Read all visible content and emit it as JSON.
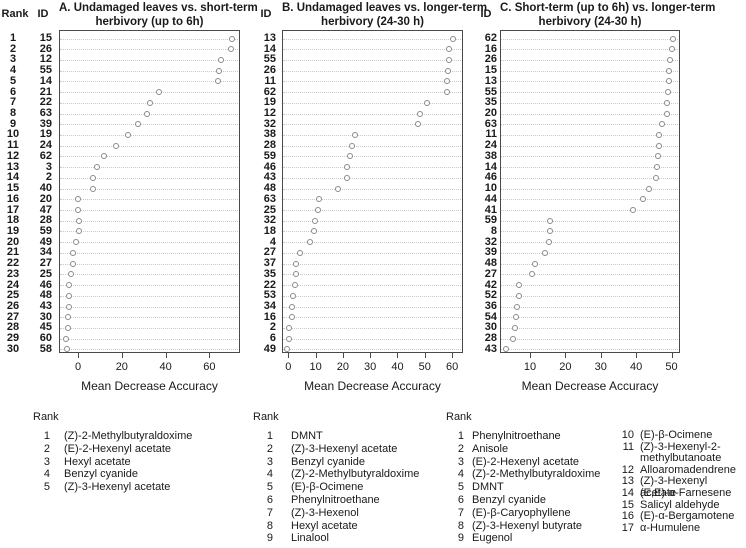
{
  "figure": {
    "background": "#ffffff",
    "text_color": "#1a1a1a",
    "dot_stroke": "#8a8a8a",
    "grid_color": "#c9c9c9",
    "box_color": "#4a4a4a"
  },
  "chart_data": [
    {
      "type": "scatter",
      "title": "A. Undamaged leaves vs. short-term herbivory (up to 6h)",
      "title_lines": [
        "A. Undamaged leaves vs. short-term",
        "herbivory (up to 6h)"
      ],
      "rank_header": "Rank",
      "id_header": "ID",
      "xlabel": "Mean Decrease Accuracy",
      "ranks": [
        1,
        2,
        3,
        4,
        5,
        6,
        7,
        8,
        9,
        10,
        11,
        12,
        13,
        14,
        15,
        16,
        17,
        18,
        19,
        20,
        21,
        22,
        23,
        24,
        25,
        26,
        27,
        28,
        29,
        30
      ],
      "ids": [
        15,
        26,
        12,
        55,
        14,
        21,
        22,
        63,
        39,
        19,
        24,
        62,
        3,
        2,
        40,
        20,
        47,
        28,
        59,
        49,
        34,
        27,
        25,
        46,
        48,
        43,
        30,
        45,
        60,
        58
      ],
      "values": [
        70.5,
        70,
        65.5,
        64.5,
        64,
        37,
        33,
        31.5,
        27.5,
        23,
        17.5,
        12,
        8.5,
        7,
        7,
        0,
        0,
        0.3,
        0.3,
        -1,
        -2.5,
        -2.5,
        -3,
        -4,
        -4,
        -4,
        -4.5,
        -4.5,
        -5.5,
        -5
      ],
      "xticks": [
        0,
        20,
        40,
        60
      ],
      "xlim": [
        -8.7,
        74
      ],
      "grid": "horizontal-dotted",
      "legend_position": "none"
    },
    {
      "type": "scatter",
      "title": "B. Undamaged leaves vs. longer-term herbivory (24-30 h)",
      "title_lines": [
        "B. Undamaged leaves vs. longer-term",
        "herbivory (24-30 h)"
      ],
      "rank_header": "",
      "id_header": "ID",
      "xlabel": "Mean Decrease Accuracy",
      "ranks": [
        1,
        2,
        3,
        4,
        5,
        6,
        7,
        8,
        9,
        10,
        11,
        12,
        13,
        14,
        15,
        16,
        17,
        18,
        19,
        20,
        21,
        22,
        23,
        24,
        25,
        26,
        27,
        28,
        29,
        30
      ],
      "ids": [
        13,
        14,
        55,
        26,
        11,
        62,
        19,
        12,
        32,
        38,
        28,
        59,
        46,
        43,
        48,
        63,
        25,
        32,
        18,
        4,
        27,
        37,
        35,
        22,
        53,
        34,
        16,
        2,
        6,
        49
      ],
      "values": [
        60.5,
        59,
        58.8,
        58.4,
        58.2,
        58,
        50.8,
        48.2,
        47.4,
        24.5,
        23.4,
        22.6,
        21.5,
        21.4,
        18.2,
        11.2,
        10.8,
        9.8,
        9.4,
        8.1,
        4.3,
        2.7,
        2.7,
        2.5,
        1.8,
        1.2,
        1.2,
        0.4,
        0.1,
        -0.4
      ],
      "xticks": [
        0,
        10,
        20,
        30,
        40,
        50,
        60
      ],
      "xlim": [
        -2.3,
        64
      ],
      "grid": "horizontal-dotted",
      "legend_position": "none"
    },
    {
      "type": "scatter",
      "title": "C. Short-term (up to 6h) vs. longer-term herbivory (24-30 h)",
      "title_lines": [
        "C. Short-term (up to 6h) vs. longer-term",
        "herbivory (24-30 h)"
      ],
      "rank_header": "",
      "id_header": "ID",
      "xlabel": "Mean Decrease Accuracy",
      "ranks": [
        1,
        2,
        3,
        4,
        5,
        6,
        7,
        8,
        9,
        10,
        11,
        12,
        13,
        14,
        15,
        16,
        17,
        18,
        19,
        20,
        21,
        22,
        23,
        24,
        25,
        26,
        27,
        28,
        29,
        30
      ],
      "ids": [
        62,
        16,
        26,
        15,
        13,
        55,
        35,
        20,
        63,
        11,
        24,
        38,
        14,
        46,
        10,
        44,
        41,
        59,
        8,
        32,
        39,
        48,
        27,
        42,
        52,
        36,
        54,
        30,
        28,
        43
      ],
      "values": [
        50.3,
        50,
        49.6,
        49.4,
        49.2,
        49,
        48.8,
        48.6,
        47.3,
        46.5,
        46.4,
        46.1,
        46,
        45.5,
        43.6,
        42,
        39.2,
        15.6,
        15.5,
        15.3,
        14.3,
        11.5,
        10.5,
        6.9,
        6.8,
        6.2,
        6.1,
        5.8,
        5.1,
        3.2
      ],
      "xticks": [
        10,
        20,
        30,
        40,
        50
      ],
      "xlim": [
        1.5,
        52.4
      ],
      "grid": "horizontal-dotted",
      "legend_position": "none"
    }
  ],
  "legend_sections": [
    {
      "header": "Rank",
      "items": [
        {
          "rank": "1",
          "name": "(Z)-2-Methylbutyraldoxime"
        },
        {
          "rank": "2",
          "name": "(E)-2-Hexenyl acetate"
        },
        {
          "rank": "3",
          "name": "Hexyl acetate"
        },
        {
          "rank": "4",
          "name": "Benzyl cyanide"
        },
        {
          "rank": "5",
          "name": "(Z)-3-Hexenyl acetate"
        }
      ]
    },
    {
      "header": "Rank",
      "items": [
        {
          "rank": "1",
          "name": "DMNT"
        },
        {
          "rank": "2",
          "name": "(Z)-3-Hexenyl acetate"
        },
        {
          "rank": "3",
          "name": "Benzyl cyanide"
        },
        {
          "rank": "4",
          "name": "(Z)-2-Methylbutyraldoxime"
        },
        {
          "rank": "5",
          "name": "(E)-β-Ocimene"
        },
        {
          "rank": "6",
          "name": "Phenylnitroethane"
        },
        {
          "rank": "7",
          "name": "(Z)-3-Hexenol"
        },
        {
          "rank": "8",
          "name": "Hexyl acetate"
        },
        {
          "rank": "9",
          "name": "Linalool"
        }
      ]
    },
    {
      "header": "Rank",
      "items": [
        {
          "rank": "1",
          "name": "Phenylnitroethane"
        },
        {
          "rank": "2",
          "name": "Anisole"
        },
        {
          "rank": "3",
          "name": "(E)-2-Hexenyl acetate"
        },
        {
          "rank": "4",
          "name": "(Z)-2-Methylbutyraldoxime"
        },
        {
          "rank": "5",
          "name": "DMNT"
        },
        {
          "rank": "6",
          "name": "Benzyl cyanide"
        },
        {
          "rank": "7",
          "name": "(E)-β-Caryophyllene"
        },
        {
          "rank": "8",
          "name": "(Z)-3-Hexenyl butyrate"
        },
        {
          "rank": "9",
          "name": "Eugenol"
        }
      ],
      "items_col2": [
        {
          "rank": "10",
          "name": "(E)-β-Ocimene"
        },
        {
          "rank": "11",
          "name": "(Z)-3-Hexenyl-2-\nmethylbutanoate"
        },
        {
          "rank": "12",
          "name": "Alloaromadendrene"
        },
        {
          "rank": "13",
          "name": "(Z)-3-Hexenyl acetate"
        },
        {
          "rank": "14",
          "name": "(E,E)-α-Farnesene"
        },
        {
          "rank": "15",
          "name": "Salicyl aldehyde"
        },
        {
          "rank": "16",
          "name": "(E)-α-Bergamotene"
        },
        {
          "rank": "17",
          "name": "α-Humulene"
        }
      ]
    }
  ]
}
